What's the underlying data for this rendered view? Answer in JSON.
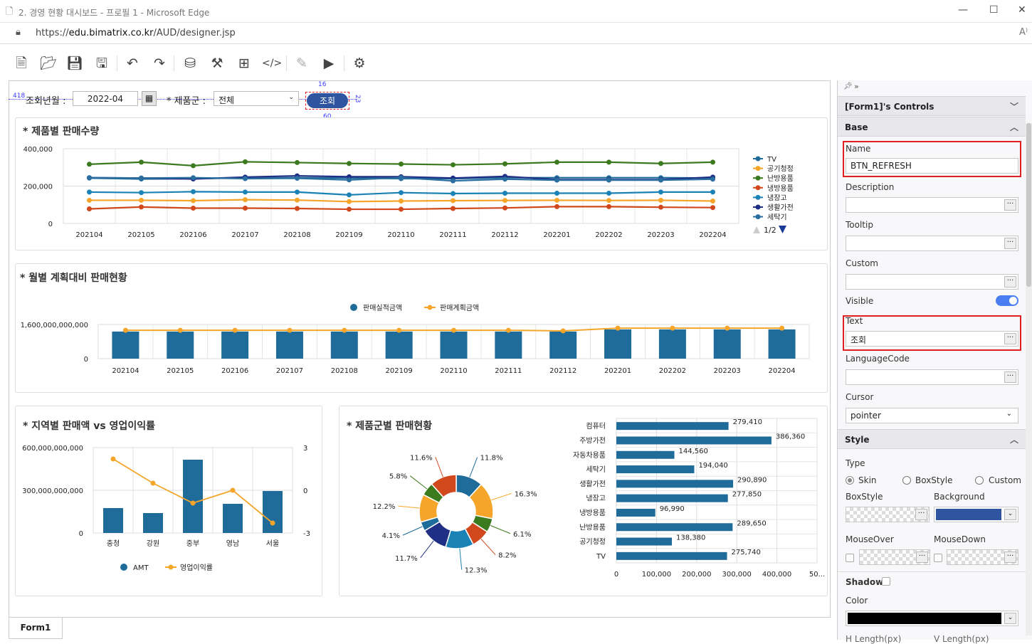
{
  "window": {
    "title": "2. 경영 현황 대시보드 - 프로필 1 - Microsoft Edge",
    "url_prefix": "https://",
    "url_host": "edu.bimatrix.co.kr",
    "url_path": "/AUD/designer.jsp"
  },
  "toolbar": {
    "icons": [
      "new-file",
      "open-folder",
      "save",
      "save-all",
      "undo",
      "redo",
      "database",
      "tools",
      "hierarchy",
      "code",
      "edit",
      "run",
      "settings"
    ]
  },
  "filter": {
    "month_label": "조회년월 :",
    "month_value": "2022-04",
    "group_label": "* 제품군 :",
    "group_value": "전체",
    "button_label": "조회",
    "guide_left": "418",
    "guide_top": "16",
    "guide_width": "60",
    "guide_height": "23"
  },
  "colors": {
    "blue": "#1f6b9a",
    "orange": "#f5a52a",
    "green": "#3b7a1e",
    "red": "#d0481c",
    "teal": "#1b82b6",
    "navy": "#1f2f86",
    "button": "#2f55a0"
  },
  "chart_data": [
    {
      "type": "line",
      "title": "* 제품별 판매수량",
      "ylim": [
        0,
        400000
      ],
      "yticks": [
        "400,000",
        "200,000",
        "0"
      ],
      "categories": [
        "202104",
        "202105",
        "202106",
        "202107",
        "202108",
        "202109",
        "202110",
        "202111",
        "202112",
        "202201",
        "202202",
        "202203",
        "202204"
      ],
      "legend_page": "1/2",
      "series": [
        {
          "name": "TV",
          "color": "#1f6b9a",
          "values": [
            243000,
            238000,
            240000,
            243000,
            245000,
            243000,
            240000,
            240000,
            245000,
            245000,
            245000,
            245000,
            243000
          ]
        },
        {
          "name": "공기청정",
          "color": "#f5a52a",
          "values": [
            124000,
            124000,
            122000,
            127000,
            125000,
            117000,
            120000,
            122000,
            123000,
            124000,
            123000,
            124000,
            120000
          ]
        },
        {
          "name": "난방용품",
          "color": "#3b7a1e",
          "values": [
            317000,
            328000,
            309000,
            330000,
            326000,
            321000,
            318000,
            314000,
            319000,
            328000,
            328000,
            321000,
            328000
          ]
        },
        {
          "name": "냉방용품",
          "color": "#d0481c",
          "values": [
            78000,
            88000,
            82000,
            82000,
            80000,
            76000,
            76000,
            80000,
            83000,
            90000,
            90000,
            87000,
            85000
          ]
        },
        {
          "name": "냉장고",
          "color": "#1b82b6",
          "values": [
            168000,
            165000,
            170000,
            168000,
            168000,
            153000,
            165000,
            160000,
            162000,
            162000,
            162000,
            168000,
            168000
          ]
        },
        {
          "name": "생활가전",
          "color": "#1f2f86",
          "values": [
            245000,
            243000,
            238000,
            248000,
            255000,
            250000,
            250000,
            243000,
            252000,
            235000,
            235000,
            235000,
            248000
          ]
        },
        {
          "name": "세탁기",
          "color": "#2a6fa0",
          "values": [
            245000,
            243000,
            245000,
            240000,
            242000,
            233000,
            245000,
            228000,
            237000,
            232000,
            232000,
            232000,
            237000
          ]
        }
      ]
    },
    {
      "type": "bar",
      "title": "* 월별 계획대비 판매현황",
      "ylim": [
        0,
        1600000000000
      ],
      "yticks": [
        "1,600,000,000,000",
        "0"
      ],
      "categories": [
        "202104",
        "202105",
        "202106",
        "202107",
        "202108",
        "202109",
        "202110",
        "202111",
        "202112",
        "202201",
        "202202",
        "202203",
        "202204"
      ],
      "series": [
        {
          "name": "판매실적금액",
          "type": "bar",
          "color": "#1f6b9a",
          "values": [
            1270000000000,
            1270000000000,
            1270000000000,
            1270000000000,
            1270000000000,
            1270000000000,
            1270000000000,
            1270000000000,
            1270000000000,
            1370000000000,
            1370000000000,
            1370000000000,
            1370000000000
          ]
        },
        {
          "name": "판매계획금액",
          "type": "line",
          "color": "#f5a52a",
          "values": [
            1330000000000,
            1330000000000,
            1330000000000,
            1330000000000,
            1330000000000,
            1330000000000,
            1330000000000,
            1330000000000,
            1300000000000,
            1430000000000,
            1430000000000,
            1430000000000,
            1430000000000
          ]
        }
      ]
    },
    {
      "type": "bar",
      "title": "* 지역별 판매액 vs 영업이익률",
      "ylim": [
        0,
        600000000000
      ],
      "y2lim": [
        -3,
        3
      ],
      "yticks": [
        "600,000,000,000",
        "300,000,000,000",
        "0"
      ],
      "y2ticks": [
        "3",
        "0",
        "-3"
      ],
      "categories": [
        "충청",
        "강원",
        "중부",
        "영남",
        "서울"
      ],
      "series": [
        {
          "name": "AMT",
          "type": "bar",
          "color": "#1f6b9a",
          "values": [
            175000000000,
            140000000000,
            515000000000,
            205000000000,
            295000000000
          ]
        },
        {
          "name": "영업이익률",
          "type": "line",
          "color": "#f5a52a",
          "values": [
            2.2,
            0.5,
            -0.9,
            0,
            -2.3
          ]
        }
      ]
    },
    {
      "type": "pie",
      "title": "* 제품군별 판매현황",
      "donut": true,
      "values": [
        11.8,
        16.3,
        6.1,
        8.2,
        12.3,
        11.7,
        4.1,
        12.2,
        5.8,
        11.6
      ],
      "labels": [
        "11.8%",
        "16.3%",
        "6.1%",
        "8.2%",
        "12.3%",
        "11.7%",
        "4.1%",
        "12.2%",
        "5.8%",
        "11.6%"
      ],
      "colors": [
        "#1f6b9a",
        "#f5a52a",
        "#3b7a1e",
        "#d0481c",
        "#1b82b6",
        "#1f2f86",
        "#1f6b9a",
        "#f5a52a",
        "#3b7a1e",
        "#d0481c"
      ]
    },
    {
      "type": "bar",
      "orientation": "horizontal",
      "xlim": [
        0,
        500000
      ],
      "xticks": [
        "0",
        "100,000",
        "200,000",
        "300,000",
        "400,000",
        "50..."
      ],
      "categories": [
        "컴퓨터",
        "주방가전",
        "자동차용품",
        "세탁기",
        "생활가전",
        "냉장고",
        "냉방용품",
        "난방용품",
        "공기청정",
        "TV"
      ],
      "values": [
        279410,
        386360,
        144560,
        194040,
        290890,
        277850,
        96990,
        289650,
        138380,
        275740
      ],
      "labels": [
        "279,410",
        "386,360",
        "144,560",
        "194,040",
        "290,890",
        "277,850",
        "96,990",
        "289,650",
        "138,380",
        "275,740"
      ],
      "color": "#1f6b9a"
    }
  ],
  "form_tab": "Form1",
  "panel": {
    "header": "[Form1]'s Controls",
    "base": "Base",
    "name_label": "Name",
    "name_value": "BTN_REFRESH",
    "description_label": "Description",
    "description_value": "",
    "tooltip_label": "Tooltip",
    "tooltip_value": "",
    "custom_label": "Custom",
    "custom_value": "",
    "visible_label": "Visible",
    "visible_on": true,
    "text_label": "Text",
    "text_value": "조회",
    "language_label": "LanguageCode",
    "language_value": "",
    "cursor_label": "Cursor",
    "cursor_value": "pointer",
    "style": "Style",
    "type_label": "Type",
    "type_options": [
      "Skin",
      "BoxStyle",
      "Custom"
    ],
    "type_selected": "Skin",
    "boxstyle_label": "BoxStyle",
    "background_label": "Background",
    "background_color": "#2f55a0",
    "mouseover_label": "MouseOver",
    "mousedown_label": "MouseDown",
    "shadow_label": "Shadow",
    "color_label": "Color",
    "shadow_color": "#000000",
    "hlength_label": "H Length(px)",
    "vlength_label": "V Length(px)"
  }
}
